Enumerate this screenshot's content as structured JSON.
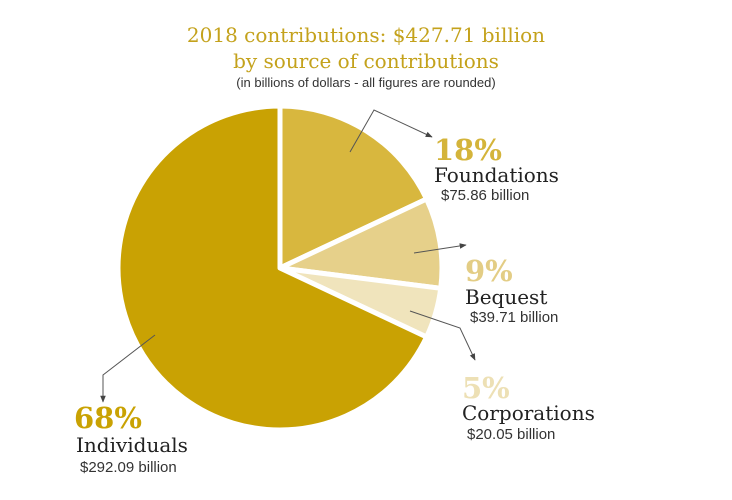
{
  "chart_data": {
    "type": "pie",
    "title": "2018 contributions: $427.71 billion",
    "subtitle": "by source of contributions",
    "note": "(in billions of dollars - all figures are rounded)",
    "start": "12 o'clock, clockwise",
    "slices": [
      {
        "label": "Foundations",
        "percent": 18,
        "percent_label": "18%",
        "value": 75.86,
        "value_label": "$75.86 billion",
        "color": "#D8B73E",
        "label_color": "#D4B43A"
      },
      {
        "label": "Bequest",
        "percent": 9,
        "percent_label": "9%",
        "value": 39.71,
        "value_label": "$39.71 billion",
        "color": "#E6D08A",
        "label_color": "#E3CD85"
      },
      {
        "label": "Corporations",
        "percent": 5,
        "percent_label": "5%",
        "value": 20.05,
        "value_label": "$20.05 billion",
        "color": "#F0E4BC",
        "label_color": "#EDE0B5"
      },
      {
        "label": "Individuals",
        "percent": 68,
        "percent_label": "68%",
        "value": 292.09,
        "value_label": "$292.09 billion",
        "color": "#C9A203",
        "label_color": "#C9A203"
      }
    ]
  }
}
